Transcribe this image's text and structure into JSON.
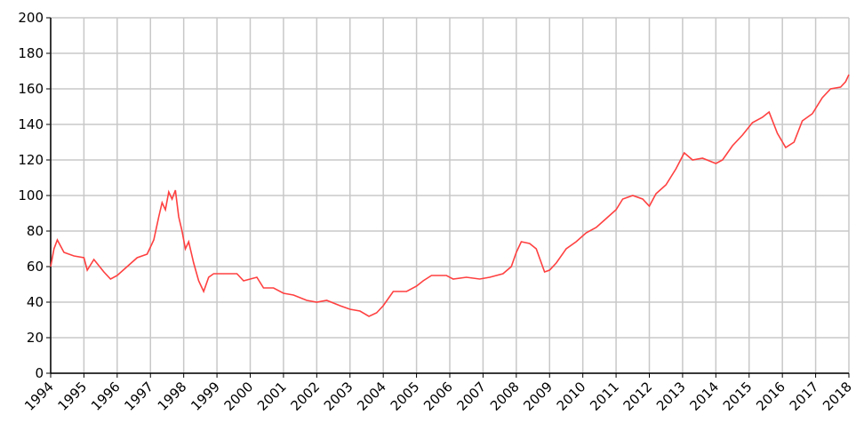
{
  "chart_data": {
    "type": "line",
    "x": [
      1994.0,
      1994.1,
      1994.2,
      1994.4,
      1994.7,
      1995.0,
      1995.1,
      1995.3,
      1995.6,
      1995.8,
      1996.0,
      1996.3,
      1996.6,
      1996.9,
      1997.1,
      1997.25,
      1997.35,
      1997.45,
      1997.55,
      1997.65,
      1997.75,
      1997.85,
      1997.95,
      1998.05,
      1998.15,
      1998.3,
      1998.45,
      1998.6,
      1998.75,
      1998.9,
      1999.2,
      1999.6,
      1999.8,
      2000.0,
      2000.2,
      2000.4,
      2000.7,
      2001.0,
      2001.3,
      2001.7,
      2002.0,
      2002.3,
      2002.7,
      2003.0,
      2003.3,
      2003.57,
      2003.8,
      2004.0,
      2004.3,
      2004.7,
      2005.0,
      2005.2,
      2005.45,
      2005.9,
      2006.1,
      2006.5,
      2006.9,
      2007.2,
      2007.6,
      2007.85,
      2008.0,
      2008.15,
      2008.4,
      2008.6,
      2008.85,
      2009.0,
      2009.2,
      2009.5,
      2009.8,
      2010.1,
      2010.4,
      2010.7,
      2011.0,
      2011.2,
      2011.5,
      2011.8,
      2012.0,
      2012.2,
      2012.5,
      2012.8,
      2013.05,
      2013.3,
      2013.6,
      2014.0,
      2014.2,
      2014.5,
      2014.8,
      2015.1,
      2015.4,
      2015.6,
      2015.85,
      2016.1,
      2016.35,
      2016.6,
      2016.9,
      2017.2,
      2017.45,
      2017.75,
      2017.9,
      2018.0
    ],
    "series": [
      {
        "color": "#ff4040",
        "values": [
          60,
          70,
          75,
          68,
          66,
          65,
          58,
          64,
          57,
          53,
          55,
          60,
          65,
          67,
          75,
          88,
          96,
          92,
          102,
          98,
          103,
          88,
          80,
          70,
          74,
          62,
          52,
          46,
          54,
          56,
          56,
          56,
          52,
          53,
          54,
          48,
          48,
          45,
          44,
          41,
          40,
          41,
          38,
          36,
          35,
          32,
          34,
          38,
          46,
          46,
          49,
          52,
          55,
          55,
          53,
          54,
          53,
          54,
          56,
          60,
          68,
          74,
          73,
          70,
          57,
          58,
          62,
          70,
          74,
          79,
          82,
          87,
          92,
          98,
          100,
          98,
          94,
          101,
          106,
          115,
          124,
          120,
          121,
          118,
          120,
          128,
          134,
          141,
          144,
          147,
          135,
          127,
          130,
          142,
          146,
          155,
          160,
          161,
          164,
          168
        ]
      }
    ],
    "xlim": [
      1994,
      2018
    ],
    "xticks": [
      1994,
      1995,
      1996,
      1997,
      1998,
      1999,
      2000,
      2001,
      2002,
      2003,
      2004,
      2005,
      2006,
      2007,
      2008,
      2009,
      2010,
      2011,
      2012,
      2013,
      2014,
      2015,
      2016,
      2017,
      2018
    ],
    "ylim": [
      0,
      200
    ],
    "yticks": [
      0,
      20,
      40,
      60,
      80,
      100,
      120,
      140,
      160,
      180,
      200
    ],
    "grid": true
  }
}
